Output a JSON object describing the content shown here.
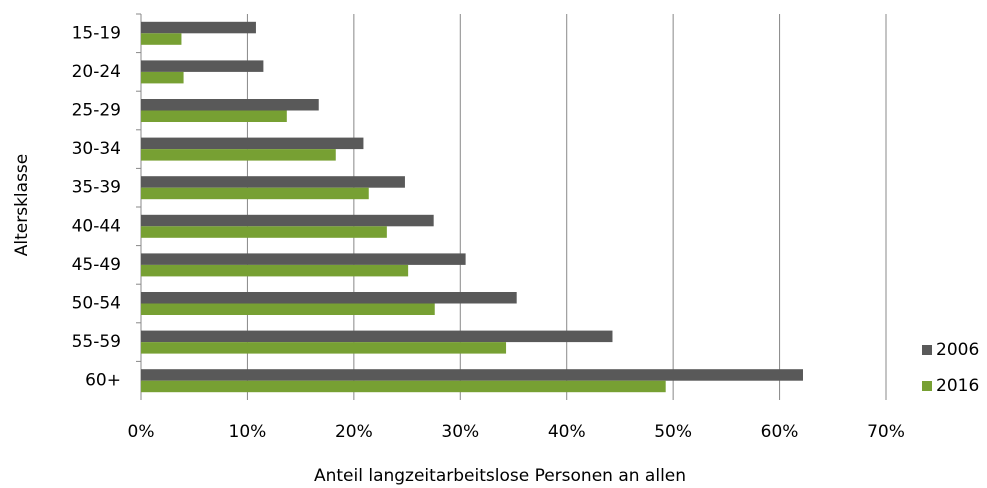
{
  "chart_data": {
    "type": "bar",
    "orientation": "horizontal",
    "xlabel": "Anteil langzeitarbeitslose Personen an allen",
    "ylabel": "Altersklasse",
    "categories": [
      "15-19",
      "20-24",
      "25-29",
      "30-34",
      "35-39",
      "40-44",
      "45-49",
      "50-54",
      "55-59",
      "60+"
    ],
    "series": [
      {
        "name": "2006",
        "color": "#595959",
        "values": [
          10.8,
          11.5,
          16.7,
          20.9,
          24.8,
          27.5,
          30.5,
          35.3,
          44.3,
          62.2
        ]
      },
      {
        "name": "2016",
        "color": "#77a033",
        "values": [
          3.8,
          4.0,
          13.7,
          18.3,
          21.4,
          23.1,
          25.1,
          27.6,
          34.3,
          49.3
        ]
      }
    ],
    "xlim": [
      0,
      70
    ],
    "xticks": [
      {
        "value": 0,
        "label": "0%"
      },
      {
        "value": 10,
        "label": "10%"
      },
      {
        "value": 20,
        "label": "20%"
      },
      {
        "value": 30,
        "label": "30%"
      },
      {
        "value": 40,
        "label": "40%"
      },
      {
        "value": 50,
        "label": "50%"
      },
      {
        "value": 60,
        "label": "60%"
      },
      {
        "value": 70,
        "label": "70%"
      }
    ],
    "grid": true,
    "legend": "right"
  }
}
